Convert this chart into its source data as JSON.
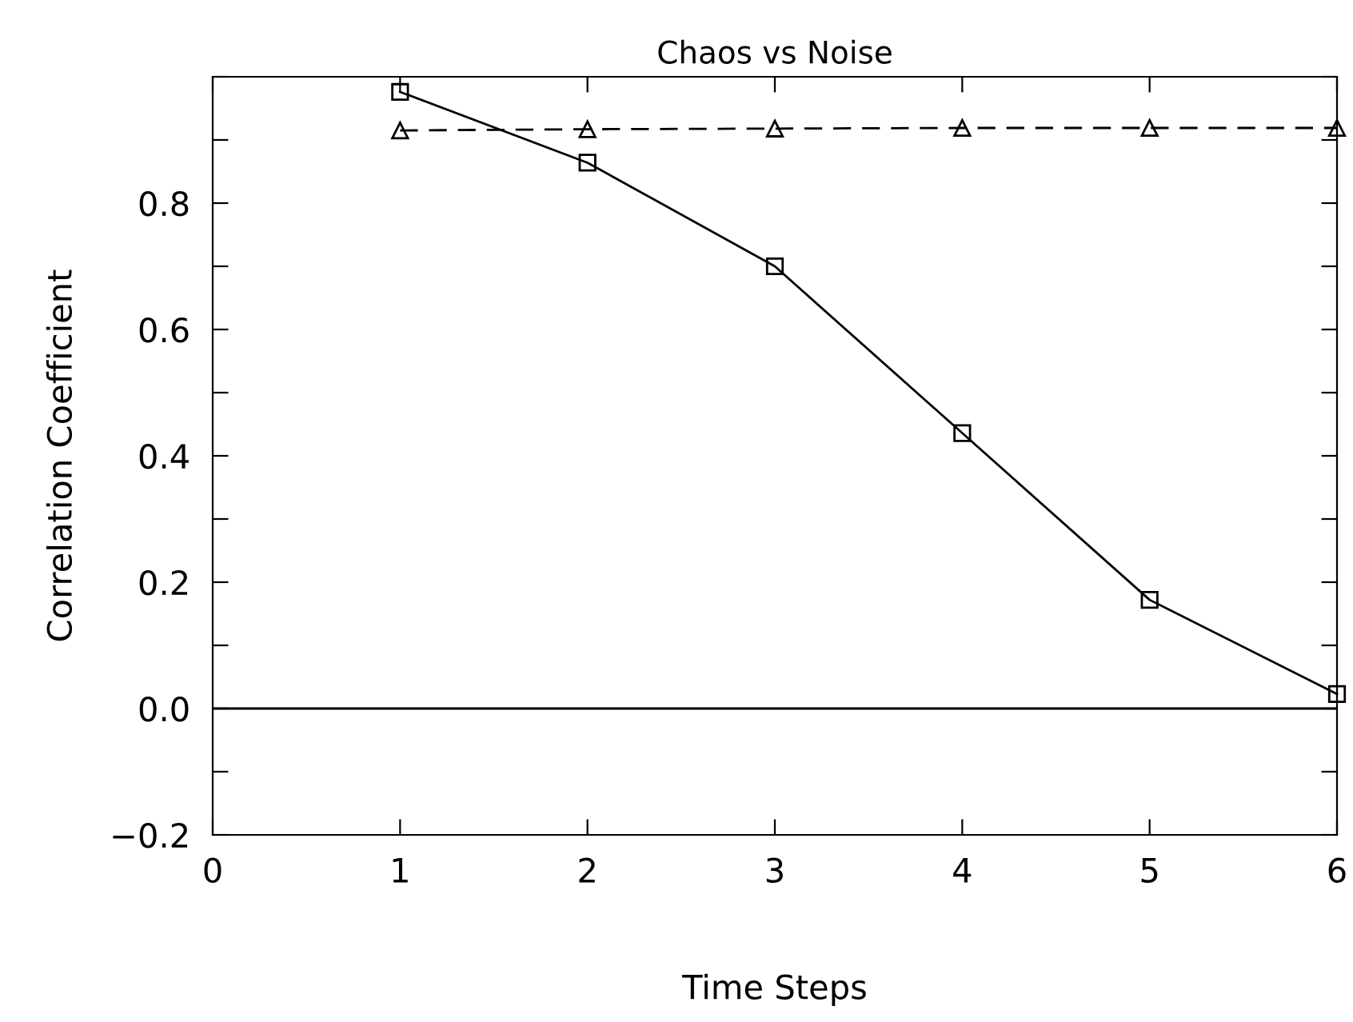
{
  "chart_data": {
    "type": "line",
    "title": "Chaos vs Noise",
    "xlabel": "Time Steps",
    "ylabel": "Correlation Coefficient",
    "x": [
      1,
      2,
      3,
      4,
      5,
      6
    ],
    "series": [
      {
        "color": "#000000",
        "values": [
          0.976,
          0.864,
          0.7,
          0.436,
          0.172,
          0.023
        ],
        "marker": "square",
        "line_style": "solid"
      },
      {
        "color": "#000000",
        "values": [
          0.915,
          0.917,
          0.918,
          0.919,
          0.919,
          0.919
        ],
        "marker": "triangle",
        "line_style": "dashed"
      }
    ],
    "xlim": [
      0,
      6
    ],
    "xticks": [
      0,
      1,
      2,
      3,
      4,
      5,
      6
    ],
    "ylim": [
      -0.2,
      1.0
    ],
    "yticks": [
      {
        "value": -0.2,
        "label": "−0.2"
      },
      {
        "value": -0.1,
        "label": null
      },
      {
        "value": 0.0,
        "label": "0.0"
      },
      {
        "value": 0.1,
        "label": null
      },
      {
        "value": 0.2,
        "label": "0.2"
      },
      {
        "value": 0.3,
        "label": null
      },
      {
        "value": 0.4,
        "label": "0.4"
      },
      {
        "value": 0.5,
        "label": null
      },
      {
        "value": 0.6,
        "label": "0.6"
      },
      {
        "value": 0.7,
        "label": null
      },
      {
        "value": 0.8,
        "label": "0.8"
      },
      {
        "value": 0.9,
        "label": null
      },
      {
        "value": 1.0,
        "label": null
      }
    ],
    "ref_lines": [
      {
        "axis": "y",
        "value": 0.0,
        "color": "#000000",
        "line_style": "solid"
      }
    ],
    "grid": false,
    "legend": false
  }
}
